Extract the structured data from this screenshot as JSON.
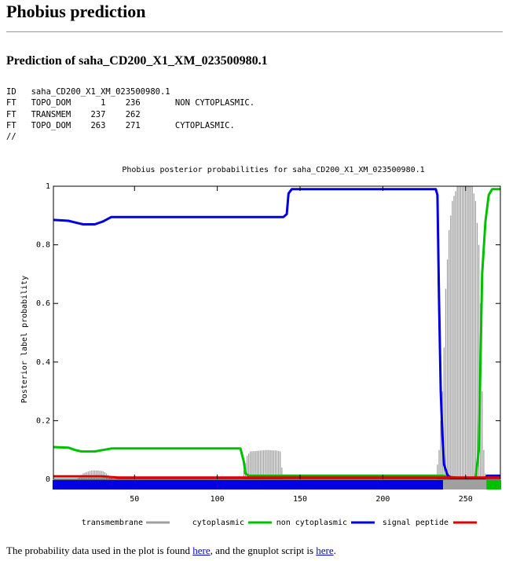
{
  "page": {
    "title": "Phobius prediction",
    "subtitle": "Prediction of saha_CD200_X1_XM_023500980.1"
  },
  "prediction": {
    "lines": [
      "ID   saha_CD200_X1_XM_023500980.1",
      "FT   TOPO_DOM      1    236       NON CYTOPLASMIC.",
      "FT   TRANSMEM    237    262",
      "FT   TOPO_DOM    263    271       CYTOPLASMIC.",
      "//"
    ]
  },
  "footer": {
    "text_before": "The probability data used in the plot is found ",
    "link1": "here",
    "text_middle": ", and the gnuplot script is ",
    "link2": "here",
    "text_after": "."
  },
  "chart_data": {
    "type": "line",
    "title": "Phobius posterior probabilities for saha_CD200_X1_XM_023500980.1",
    "xlabel": "",
    "ylabel": "Posterior label probability",
    "xlim": [
      1,
      271
    ],
    "ylim": [
      0,
      1
    ],
    "x_ticks": [
      50,
      100,
      150,
      200,
      250
    ],
    "y_ticks": [
      0,
      0.2,
      0.4,
      0.6,
      0.8,
      1
    ],
    "y_tick_labels": [
      "0",
      "0.2",
      "0.4",
      "0.6",
      "0.8",
      "1"
    ],
    "grid": false,
    "legend_position": "bottom",
    "series": [
      {
        "name": "transmembrane",
        "style": "impulses",
        "color": "#a0a0a0",
        "points": [
          [
            1,
            0
          ],
          [
            15,
            0
          ],
          [
            17,
            0.01
          ],
          [
            19,
            0.02
          ],
          [
            21,
            0.025
          ],
          [
            24,
            0.03
          ],
          [
            28,
            0.03
          ],
          [
            31,
            0.028
          ],
          [
            33,
            0.02
          ],
          [
            35,
            0.01
          ],
          [
            37,
            0
          ],
          [
            115,
            0
          ],
          [
            116,
            0.03
          ],
          [
            118,
            0.08
          ],
          [
            120,
            0.095
          ],
          [
            130,
            0.1
          ],
          [
            136,
            0.098
          ],
          [
            138,
            0.095
          ],
          [
            139,
            0.04
          ],
          [
            140,
            0
          ],
          [
            232,
            0
          ],
          [
            234,
            0.1
          ],
          [
            236,
            0.3
          ],
          [
            237,
            0.45
          ],
          [
            238,
            0.65
          ],
          [
            240,
            0.85
          ],
          [
            242,
            0.95
          ],
          [
            245,
            1
          ],
          [
            254,
            1
          ],
          [
            256,
            0.95
          ],
          [
            258,
            0.8
          ],
          [
            259,
            0.6
          ],
          [
            260,
            0.3
          ],
          [
            261,
            0.1
          ],
          [
            262,
            0.02
          ],
          [
            263,
            0
          ]
        ]
      },
      {
        "name": "cytoplasmic",
        "style": "line",
        "color": "#00c000",
        "points": [
          [
            1,
            0.11
          ],
          [
            10,
            0.108
          ],
          [
            14,
            0.1
          ],
          [
            18,
            0.095
          ],
          [
            26,
            0.095
          ],
          [
            31,
            0.1
          ],
          [
            36,
            0.105
          ],
          [
            114,
            0.105
          ],
          [
            116,
            0.06
          ],
          [
            117,
            0.02
          ],
          [
            119,
            0.012
          ],
          [
            236,
            0.012
          ],
          [
            245,
            0.005
          ],
          [
            256,
            0.005
          ],
          [
            258,
            0.1
          ],
          [
            259,
            0.4
          ],
          [
            260,
            0.7
          ],
          [
            262,
            0.88
          ],
          [
            264,
            0.97
          ],
          [
            266,
            0.99
          ],
          [
            271,
            0.99
          ]
        ]
      },
      {
        "name": "non cytoplasmic",
        "style": "line",
        "color": "#0000e0",
        "points": [
          [
            1,
            0.885
          ],
          [
            10,
            0.882
          ],
          [
            15,
            0.875
          ],
          [
            19,
            0.87
          ],
          [
            26,
            0.87
          ],
          [
            31,
            0.88
          ],
          [
            36,
            0.895
          ],
          [
            140,
            0.895
          ],
          [
            142,
            0.905
          ],
          [
            143,
            0.975
          ],
          [
            145,
            0.99
          ],
          [
            232,
            0.99
          ],
          [
            233,
            0.97
          ],
          [
            234,
            0.6
          ],
          [
            235,
            0.3
          ],
          [
            236,
            0.15
          ],
          [
            237,
            0.05
          ],
          [
            239,
            0.015
          ],
          [
            241,
            0.005
          ],
          [
            262,
            0.005
          ],
          [
            263,
            0.012
          ],
          [
            271,
            0.012
          ]
        ]
      },
      {
        "name": "signal peptide",
        "style": "line",
        "color": "#e00000",
        "points": [
          [
            1,
            0.01
          ],
          [
            30,
            0.01
          ],
          [
            40,
            0.006
          ],
          [
            271,
            0.006
          ]
        ]
      }
    ],
    "bottom_bar": {
      "segments": [
        {
          "start": 1,
          "end": 236,
          "color": "#0000e0"
        },
        {
          "start": 237,
          "end": 262,
          "color": "#a0a0a0"
        },
        {
          "start": 263,
          "end": 271,
          "color": "#00c000"
        }
      ]
    }
  }
}
